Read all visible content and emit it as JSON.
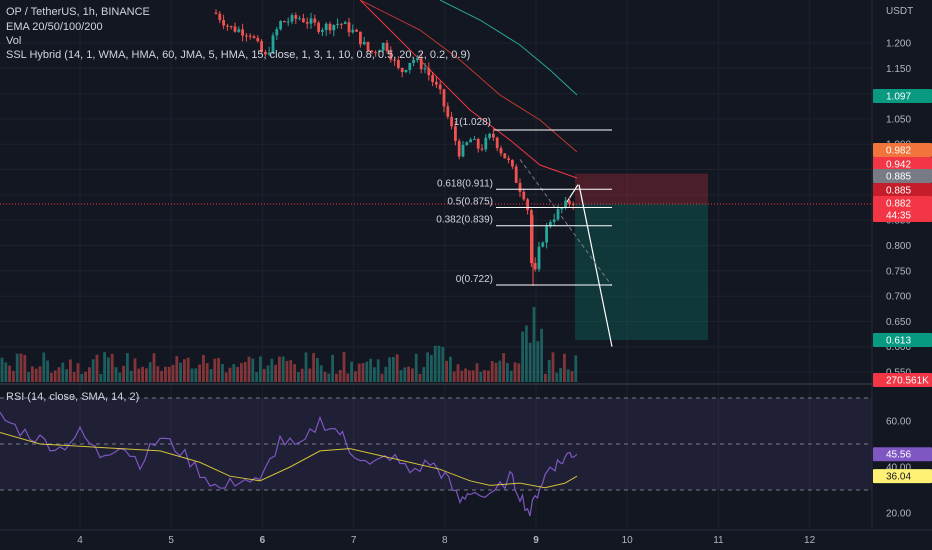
{
  "header": {
    "title": "OP / TetherUS, 1h, BINANCE",
    "ema": "EMA 20/50/100/200",
    "vol": "Vol",
    "ssl": "SSL Hybrid (14, 1, WMA, HMA, 60, JMA, 5, HMA, 15, close, 1, 3, 1, 10, 0.8, 0.5, 20, 2, 0.2, 0.9)",
    "rsi": "RSI (14, close, SMA, 14, 2)"
  },
  "price_axis": {
    "unit": "USDT",
    "ticks": [
      "1.200",
      "1.150",
      "1.100",
      "1.050",
      "1.000",
      "0.950",
      "0.900",
      "0.850",
      "0.800",
      "0.750",
      "0.700",
      "0.650",
      "0.600",
      "0.550"
    ]
  },
  "rsi_axis": {
    "ticks": [
      "60.00",
      "40.00",
      "20.00"
    ]
  },
  "time_axis": {
    "ticks": [
      "4",
      "5",
      "6",
      "7",
      "8",
      "9",
      "10",
      "11",
      "12"
    ]
  },
  "price_tags": [
    {
      "text": "1.097",
      "color": "#089981"
    },
    {
      "text": "0.982",
      "color": "#f0743c"
    },
    {
      "text": "0.942",
      "color": "#f23645"
    },
    {
      "text": "0.885",
      "color": "#787b86"
    },
    {
      "text": "0.885",
      "color": "#c41e2a"
    },
    {
      "text": "0.882",
      "color": "#f23645"
    },
    {
      "text": "44:35",
      "color": "#f23645"
    },
    {
      "text": "0.613",
      "color": "#089981"
    },
    {
      "text": "270.561K",
      "color": "#f23645"
    }
  ],
  "rsi_tags": [
    {
      "text": "45.56",
      "color": "#7e57c2"
    },
    {
      "text": "36.04",
      "color": "#fff176"
    }
  ],
  "chart_data": {
    "type": "candlestick",
    "symbol": "OP / TetherUS",
    "interval": "1h",
    "exchange": "BINANCE",
    "ylim": [
      0.53,
      1.24
    ],
    "last_price": 0.882,
    "fib_levels": [
      {
        "label": "1(1.028)",
        "value": 1.028
      },
      {
        "label": "0.618(0.911)",
        "value": 0.911
      },
      {
        "label": "0.5(0.875)",
        "value": 0.875
      },
      {
        "label": "0.382(0.839)",
        "value": 0.839
      },
      {
        "label": "0(0.722)",
        "value": 0.722
      }
    ],
    "position": {
      "entry": 0.882,
      "stop": 0.942,
      "target": 0.613
    },
    "ema_levels": {
      "ema20": 0.885,
      "ema50": 0.942,
      "ema100": 0.982,
      "ema200": 1.097
    },
    "volume_last": "270.561K",
    "rsi": {
      "rsi": 45.56,
      "rsi_sma": 36.04,
      "bands": [
        70,
        50,
        30
      ],
      "ylim": [
        15,
        75
      ]
    }
  }
}
